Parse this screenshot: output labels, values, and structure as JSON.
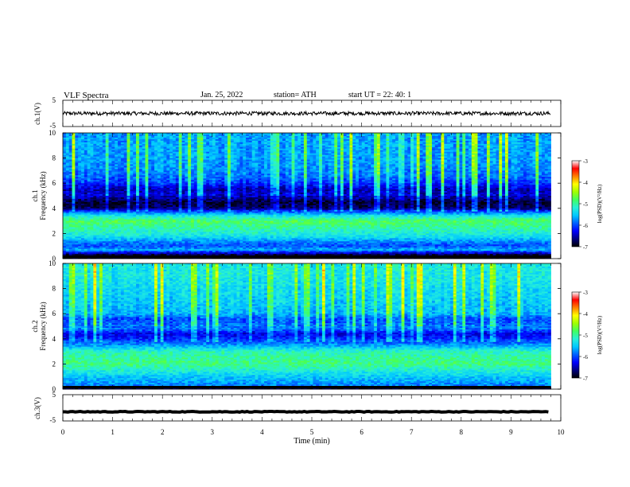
{
  "header": {
    "title": "VLF  Spectra",
    "date": "Jan. 25, 2022",
    "station": "station= ATH",
    "start_ut": "start  UT  =   22: 40: 1"
  },
  "colors": {
    "spectrogram_scale": [
      "#000000",
      "#00007f",
      "#0000ff",
      "#0060ff",
      "#00c8ff",
      "#28f0d8",
      "#40ff60",
      "#a0ff00",
      "#ffff00",
      "#ff8000",
      "#ff0000",
      "#ffffff"
    ],
    "waveform": "#000000"
  },
  "chart_data": [
    {
      "name": "ch1-waveform",
      "type": "line",
      "ylabel": "ch.1(V)",
      "ylim": [
        -5,
        5
      ],
      "yticks": [
        "5",
        "-5"
      ],
      "x_range_min": [
        0,
        9.8
      ],
      "level_v": 0,
      "noise_v": 0.7
    },
    {
      "name": "ch1-spectrogram",
      "type": "heatmap",
      "ylabel": "ch.1\nFrequency (kHz)",
      "ylim": [
        0,
        10
      ],
      "yticks": [
        "0",
        "2",
        "4",
        "6",
        "8",
        "10"
      ],
      "x_range_min": [
        0,
        9.8
      ],
      "freq_profile_khz": [
        0,
        0.3,
        0.7,
        1.0,
        1.3,
        1.7,
        2.0,
        2.5,
        3.0,
        3.4,
        3.7,
        4.0,
        4.5,
        5.0,
        5.5,
        6.0,
        6.5,
        7.0,
        8.0,
        9.0,
        10.0
      ],
      "log_psd_profile": [
        -7.0,
        -6.8,
        -5.6,
        -6.0,
        -5.8,
        -5.4,
        -5.2,
        -5.0,
        -4.8,
        -5.3,
        -5.9,
        -6.8,
        -6.9,
        -6.5,
        -6.6,
        -6.2,
        -6.0,
        -5.9,
        -5.8,
        -5.8,
        -5.8
      ],
      "colorbar": {
        "label": "log(PSD)(V²/Hz)",
        "range": [
          -7,
          -3
        ],
        "ticks": [
          "-3",
          "-4",
          "-5",
          "-6",
          "-7"
        ]
      }
    },
    {
      "name": "ch2-spectrogram",
      "type": "heatmap",
      "ylabel": "ch.2\nFrequency (kHz)",
      "ylim": [
        0,
        10
      ],
      "yticks": [
        "0",
        "2",
        "4",
        "6",
        "8",
        "10"
      ],
      "x_range_min": [
        0,
        9.8
      ],
      "freq_profile_khz": [
        0,
        0.3,
        0.7,
        1.0,
        1.5,
        2.0,
        2.5,
        3.0,
        3.3,
        3.6,
        4.0,
        4.4,
        4.8,
        5.2,
        5.6,
        6.0,
        7.0,
        8.0,
        9.0,
        10.0
      ],
      "log_psd_profile": [
        -7.0,
        -5.8,
        -5.6,
        -5.5,
        -5.2,
        -4.9,
        -5.0,
        -5.1,
        -5.5,
        -5.8,
        -6.2,
        -6.4,
        -5.9,
        -6.0,
        -6.1,
        -5.7,
        -5.6,
        -5.5,
        -5.4,
        -5.4
      ],
      "colorbar": {
        "label": "log(PSD)(V²/Hz)",
        "range": [
          -7,
          -3
        ],
        "ticks": [
          "-3",
          "-4",
          "-5",
          "-6",
          "-7"
        ]
      }
    },
    {
      "name": "ch3-waveform",
      "type": "line",
      "ylabel": "ch.3(V)",
      "ylim": [
        -5,
        5
      ],
      "yticks": [
        "5",
        "-5"
      ],
      "x_range_min": [
        0,
        9.8
      ],
      "level_v": -1.5,
      "noise_v": 0.15
    }
  ],
  "xaxis": {
    "label": "Time  (min)",
    "range_min": [
      0,
      10
    ],
    "ticks": [
      "0",
      "1",
      "2",
      "3",
      "4",
      "5",
      "6",
      "7",
      "8",
      "9",
      "10"
    ]
  }
}
